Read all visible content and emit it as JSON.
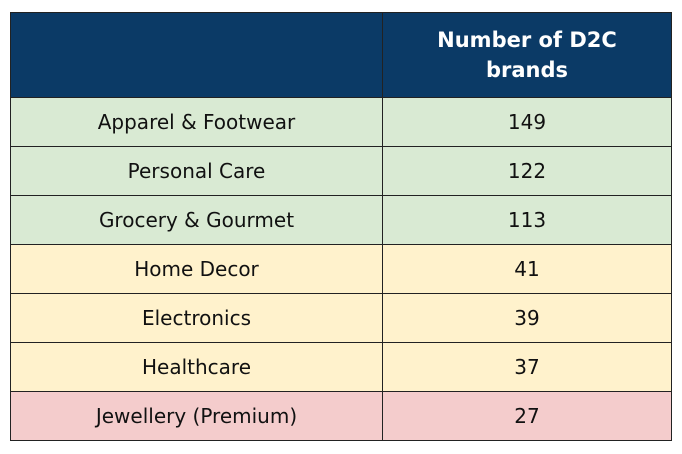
{
  "table": {
    "header": {
      "value_column": "Number of D2C brands",
      "color": "#0b3a66"
    },
    "rows": [
      {
        "category": "Apparel & Footwear",
        "value": 149,
        "color": "#d9ead3"
      },
      {
        "category": "Personal Care",
        "value": 122,
        "color": "#d9ead3"
      },
      {
        "category": "Grocery & Gourmet",
        "value": 113,
        "color": "#d9ead3"
      },
      {
        "category": "Home Decor",
        "value": 41,
        "color": "#fff2cc"
      },
      {
        "category": "Electronics",
        "value": 39,
        "color": "#fff2cc"
      },
      {
        "category": "Healthcare",
        "value": 37,
        "color": "#fff2cc"
      },
      {
        "category": "Jewellery (Premium)",
        "value": 27,
        "color": "#f4cccc"
      }
    ]
  }
}
